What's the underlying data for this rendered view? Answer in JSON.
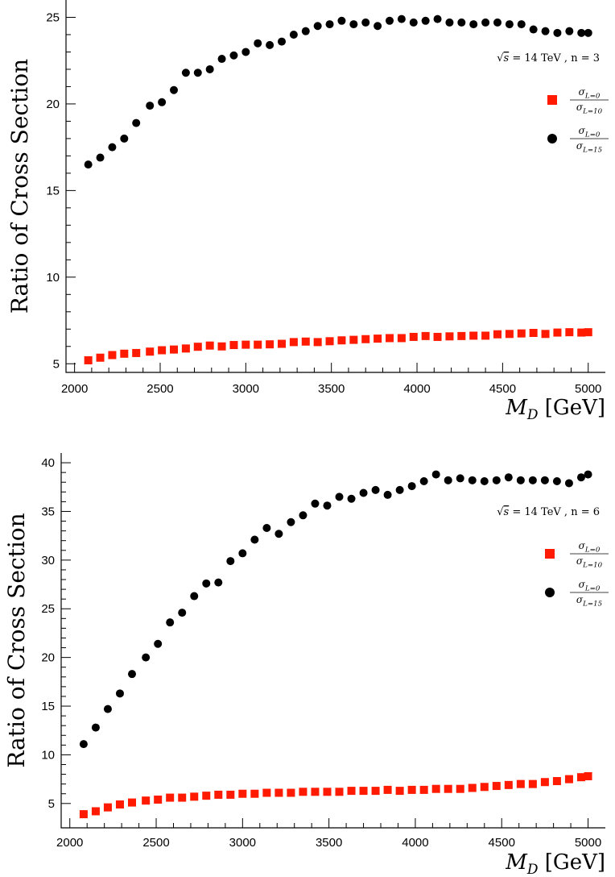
{
  "chart_data": [
    {
      "type": "scatter",
      "ylabel": "Ratio of Cross Section",
      "xlabel_main": "M",
      "xlabel_sub": "D",
      "xlabel_unit": "[GeV]",
      "annotation": {
        "sqrt": "√",
        "s_text": "s",
        "rest": " = 14 TeV , n = 3"
      },
      "xlim": [
        1950,
        5100
      ],
      "ylim": [
        4.5,
        26
      ],
      "xticks": [
        2000,
        2500,
        3000,
        3500,
        4000,
        4500,
        5000
      ],
      "yticks": [
        5,
        10,
        15,
        20,
        25
      ],
      "legend_position": "right",
      "series": [
        {
          "legend_num": "σ_{L=0}",
          "legend_den": "σ_{L=10}",
          "marker": "square",
          "color": "#ff1a00",
          "x": [
            2080,
            2150,
            2220,
            2290,
            2360,
            2440,
            2510,
            2580,
            2650,
            2720,
            2790,
            2860,
            2930,
            3000,
            3070,
            3140,
            3210,
            3280,
            3350,
            3420,
            3490,
            3560,
            3630,
            3700,
            3770,
            3840,
            3910,
            3980,
            4050,
            4120,
            4190,
            4260,
            4330,
            4400,
            4470,
            4540,
            4610,
            4680,
            4750,
            4820,
            4890,
            4960,
            5000
          ],
          "y": [
            5.2,
            5.35,
            5.5,
            5.58,
            5.62,
            5.7,
            5.78,
            5.82,
            5.88,
            5.98,
            6.05,
            6.0,
            6.08,
            6.1,
            6.1,
            6.12,
            6.15,
            6.25,
            6.28,
            6.25,
            6.3,
            6.35,
            6.38,
            6.42,
            6.45,
            6.48,
            6.48,
            6.55,
            6.6,
            6.55,
            6.58,
            6.6,
            6.62,
            6.62,
            6.7,
            6.72,
            6.75,
            6.78,
            6.72,
            6.8,
            6.82,
            6.8,
            6.82
          ]
        },
        {
          "legend_num": "σ_{L=0}",
          "legend_den": "σ_{L=15}",
          "marker": "circle",
          "color": "#000000",
          "x": [
            2080,
            2150,
            2220,
            2290,
            2360,
            2440,
            2510,
            2580,
            2650,
            2720,
            2790,
            2860,
            2930,
            3000,
            3070,
            3140,
            3210,
            3280,
            3350,
            3420,
            3490,
            3560,
            3630,
            3700,
            3770,
            3840,
            3910,
            3980,
            4050,
            4120,
            4190,
            4260,
            4330,
            4400,
            4470,
            4540,
            4610,
            4680,
            4750,
            4820,
            4890,
            4960,
            5000
          ],
          "y": [
            16.5,
            16.9,
            17.5,
            18.0,
            18.9,
            19.9,
            20.1,
            20.8,
            21.8,
            21.8,
            22.0,
            22.6,
            22.8,
            23.0,
            23.5,
            23.4,
            23.6,
            24.0,
            24.2,
            24.5,
            24.6,
            24.8,
            24.6,
            24.7,
            24.5,
            24.8,
            24.9,
            24.7,
            24.8,
            24.9,
            24.7,
            24.7,
            24.6,
            24.7,
            24.7,
            24.6,
            24.6,
            24.3,
            24.2,
            24.1,
            24.2,
            24.1,
            24.1
          ]
        }
      ]
    },
    {
      "type": "scatter",
      "ylabel": "Ratio of Cross Section",
      "xlabel_main": "M",
      "xlabel_sub": "D",
      "xlabel_unit": "[GeV]",
      "annotation": {
        "sqrt": "√",
        "s_text": "s",
        "rest": " = 14 TeV , n = 6"
      },
      "xlim": [
        1950,
        5100
      ],
      "ylim": [
        2.5,
        41
      ],
      "xticks": [
        2000,
        2500,
        3000,
        3500,
        4000,
        4500,
        5000
      ],
      "yticks": [
        5,
        10,
        15,
        20,
        25,
        30,
        35,
        40
      ],
      "legend_position": "right",
      "series": [
        {
          "legend_num": "σ_{L=0}",
          "legend_den": "σ_{L=10}",
          "marker": "square",
          "color": "#ff1a00",
          "x": [
            2080,
            2150,
            2220,
            2290,
            2360,
            2440,
            2510,
            2580,
            2650,
            2720,
            2790,
            2860,
            2930,
            3000,
            3070,
            3140,
            3210,
            3280,
            3350,
            3420,
            3490,
            3560,
            3630,
            3700,
            3770,
            3840,
            3910,
            3980,
            4050,
            4120,
            4190,
            4260,
            4330,
            4400,
            4470,
            4540,
            4610,
            4680,
            4750,
            4820,
            4890,
            4960,
            5000
          ],
          "y": [
            3.9,
            4.2,
            4.6,
            4.9,
            5.1,
            5.3,
            5.4,
            5.6,
            5.6,
            5.7,
            5.8,
            5.9,
            5.9,
            6.0,
            6.0,
            6.1,
            6.1,
            6.1,
            6.2,
            6.2,
            6.2,
            6.2,
            6.3,
            6.3,
            6.3,
            6.4,
            6.3,
            6.4,
            6.4,
            6.5,
            6.5,
            6.5,
            6.6,
            6.7,
            6.8,
            6.9,
            7.0,
            7.0,
            7.2,
            7.3,
            7.5,
            7.7,
            7.8
          ]
        },
        {
          "legend_num": "σ_{L=0}",
          "legend_den": "σ_{L=15}",
          "marker": "circle",
          "color": "#000000",
          "x": [
            2080,
            2150,
            2220,
            2290,
            2360,
            2440,
            2510,
            2580,
            2650,
            2720,
            2790,
            2860,
            2930,
            3000,
            3070,
            3140,
            3210,
            3280,
            3350,
            3420,
            3490,
            3560,
            3630,
            3700,
            3770,
            3840,
            3910,
            3980,
            4050,
            4120,
            4190,
            4260,
            4330,
            4400,
            4470,
            4540,
            4610,
            4680,
            4750,
            4820,
            4890,
            4960,
            5000
          ],
          "y": [
            11.1,
            12.8,
            14.7,
            16.3,
            18.3,
            20.0,
            21.4,
            23.6,
            24.6,
            26.3,
            27.6,
            27.7,
            29.9,
            30.7,
            32.1,
            33.3,
            32.7,
            33.9,
            34.6,
            35.8,
            35.6,
            36.5,
            36.3,
            36.9,
            37.2,
            36.7,
            37.2,
            37.6,
            38.1,
            38.8,
            38.2,
            38.4,
            38.2,
            38.1,
            38.2,
            38.5,
            38.2,
            38.2,
            38.2,
            38.1,
            37.9,
            38.5,
            38.8
          ]
        }
      ]
    }
  ]
}
